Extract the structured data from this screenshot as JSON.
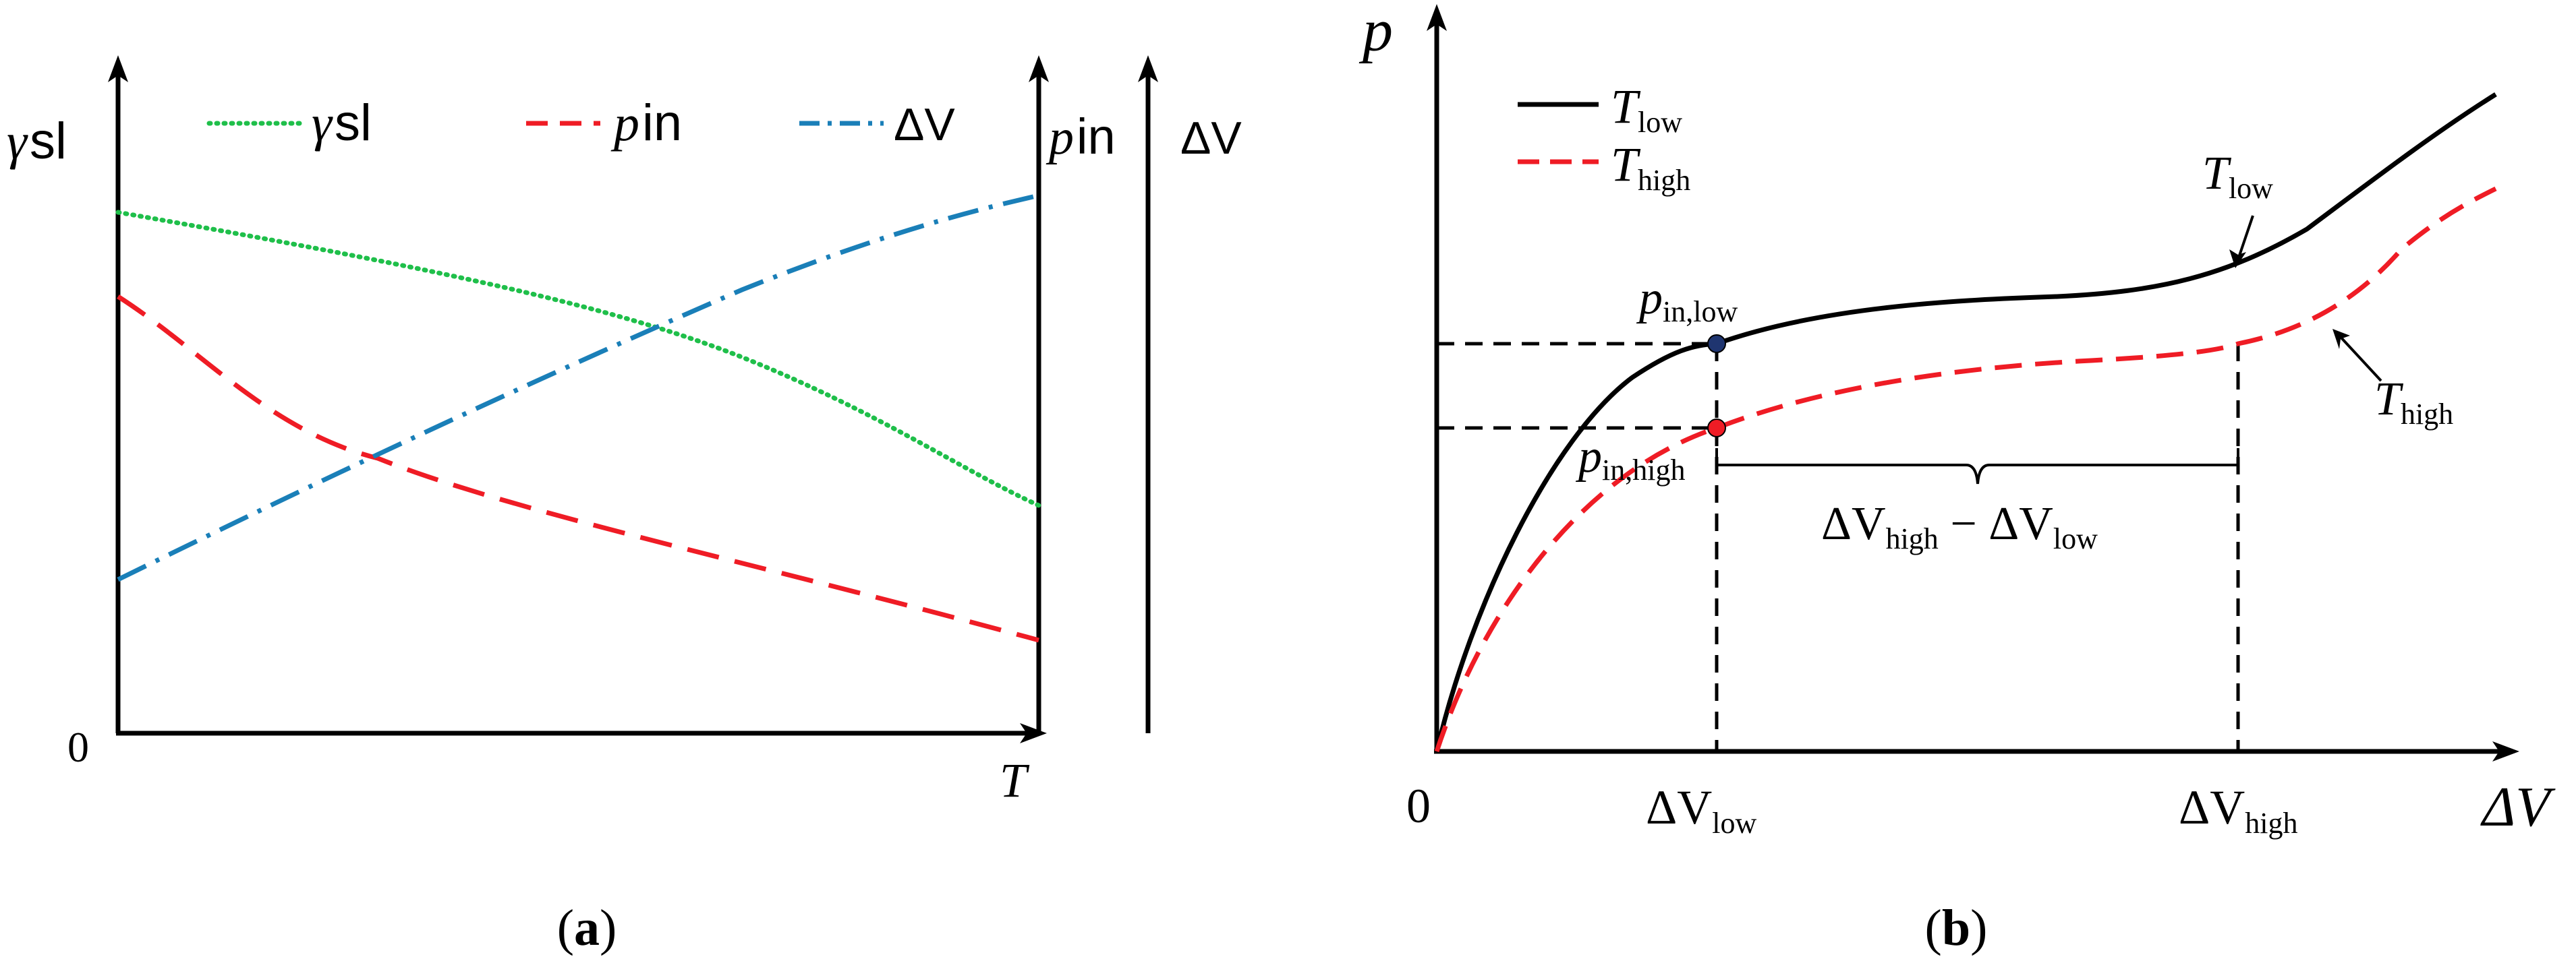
{
  "panel_a": {
    "caption": "(a)",
    "origin_label": "0",
    "x_axis_label": "T",
    "left_axis_label": "γ",
    "left_axis_label_sub": "sl",
    "right_axis_label_1": "p",
    "right_axis_label_1_sub": "in",
    "right_axis_label_2": "ΔV",
    "legend": [
      {
        "symbol": "γ",
        "sub": "sl",
        "color": "#1fbf4a",
        "style": "dotted"
      },
      {
        "symbol": "p",
        "sub": "in",
        "color": "#ef1c25",
        "style": "dashed"
      },
      {
        "symbol": "ΔV",
        "sub": "",
        "color": "#1a7fb8",
        "style": "dash-dot"
      }
    ]
  },
  "panel_b": {
    "caption": "(b)",
    "origin_label": "0",
    "y_axis_label": "p",
    "x_axis_label": "ΔV",
    "legend": [
      {
        "symbol": "T",
        "sub": "low",
        "color": "#000000",
        "style": "solid"
      },
      {
        "symbol": "T",
        "sub": "high",
        "color": "#ef1c25",
        "style": "dashed"
      }
    ],
    "curve_label_low": {
      "symbol": "T",
      "sub": "low"
    },
    "curve_label_high": {
      "symbol": "T",
      "sub": "high"
    },
    "point_low": {
      "symbol": "p",
      "sub": "in,low",
      "color": "#1f3570"
    },
    "point_high": {
      "symbol": "p",
      "sub": "in,high",
      "color": "#ef1c25"
    },
    "x_tick_low": {
      "symbol": "ΔV",
      "sub": "low"
    },
    "x_tick_high": {
      "symbol": "ΔV",
      "sub": "high"
    },
    "brace_label": {
      "a": "ΔV",
      "a_sub": "high",
      "op": " − ",
      "b": "ΔV",
      "b_sub": "low"
    }
  }
}
